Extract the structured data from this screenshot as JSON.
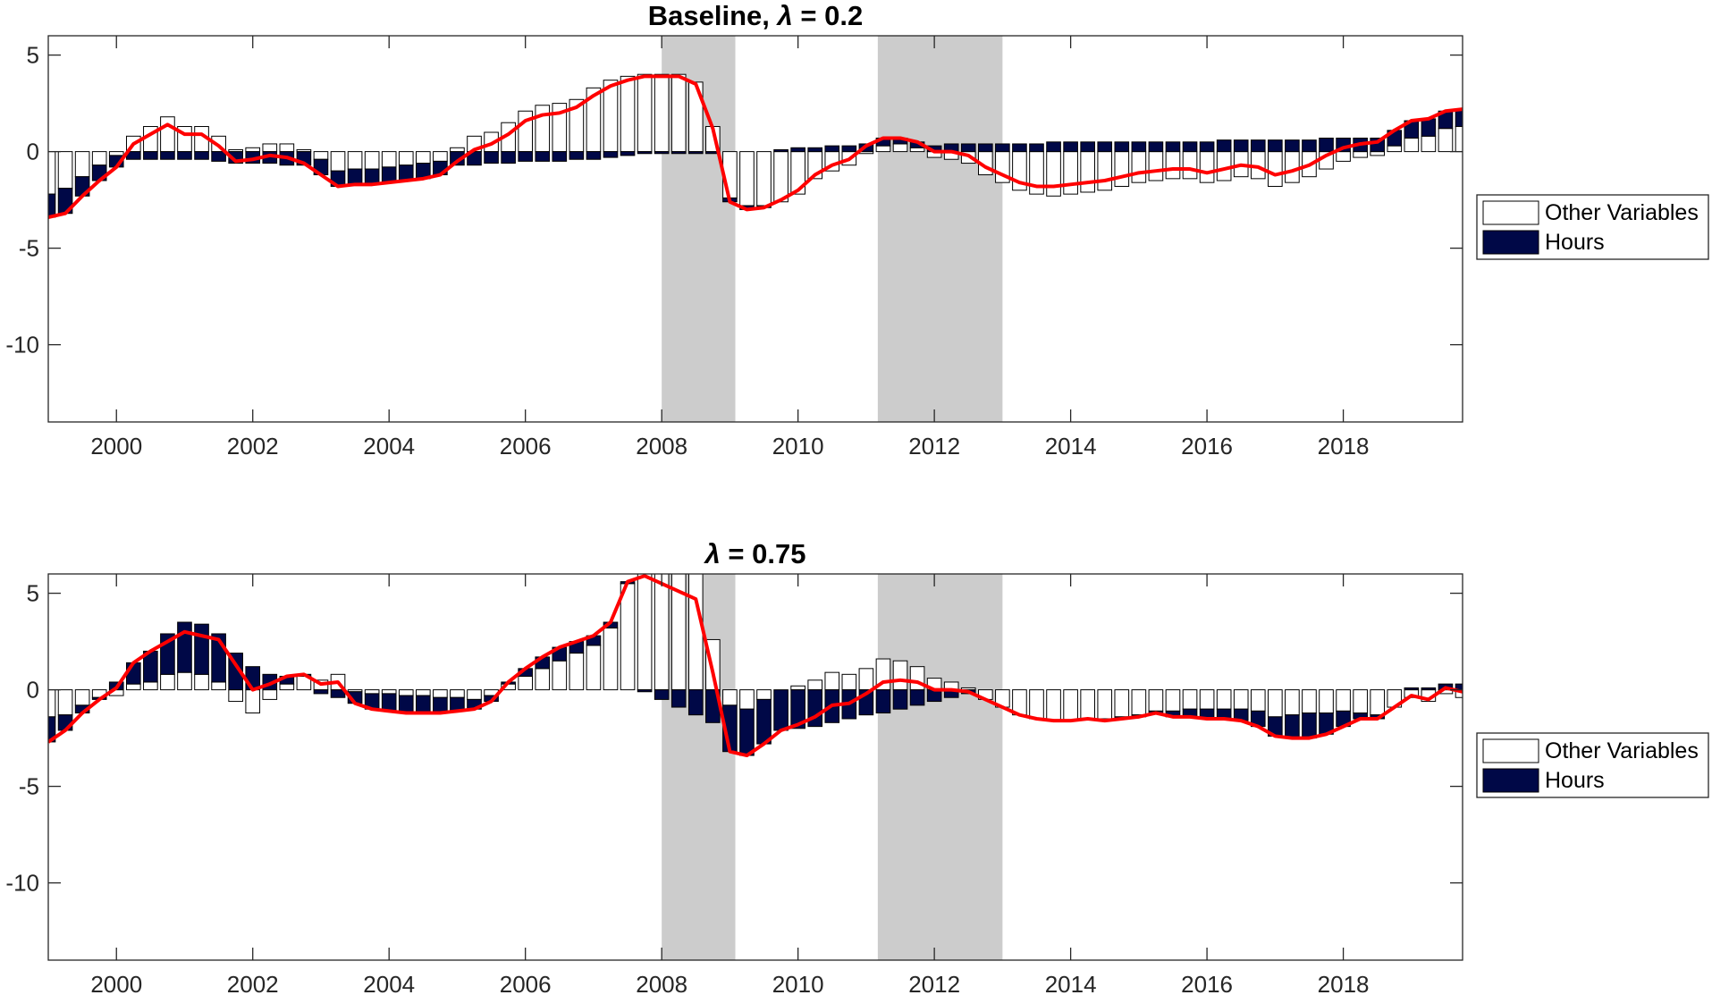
{
  "colors": {
    "other": "#ffffff",
    "hours": "#000847",
    "line": "#ff0000",
    "recession": "#cccccc",
    "axis": "#262626"
  },
  "chart_data": [
    {
      "type": "bar",
      "stacked": true,
      "title_prefix": "Baseline, ",
      "title_symbol": "λ",
      "title_suffix": " = 0.2",
      "xlim": [
        1999.0,
        2019.75
      ],
      "ylim": [
        -14,
        6
      ],
      "yticks": [
        5,
        0,
        -5,
        -10
      ],
      "xticks": [
        2000,
        2002,
        2004,
        2006,
        2008,
        2010,
        2012,
        2014,
        2016,
        2018
      ],
      "shaded_periods": [
        [
          2008.0,
          2009.08
        ],
        [
          2011.17,
          2013.0
        ]
      ],
      "legend": {
        "placement": "right",
        "entries": [
          "Other Variables",
          "Hours"
        ]
      },
      "x_start": 1999.0,
      "x_step": 0.25,
      "series": [
        {
          "name": "Other Variables",
          "values": [
            -2.2,
            -1.9,
            -1.3,
            -0.7,
            -0.2,
            0.8,
            1.3,
            1.8,
            1.3,
            1.3,
            0.8,
            0.1,
            0.2,
            0.4,
            0.4,
            0.1,
            -0.4,
            -1.0,
            -0.9,
            -0.9,
            -0.8,
            -0.7,
            -0.6,
            -0.5,
            0.2,
            0.8,
            1.0,
            1.5,
            2.1,
            2.4,
            2.5,
            2.7,
            3.3,
            3.7,
            3.9,
            4.0,
            4.0,
            4.0,
            3.6,
            1.3,
            -2.4,
            -2.8,
            -2.8,
            -2.6,
            -2.2,
            -1.4,
            -1.0,
            -0.7,
            -0.1,
            0.3,
            0.4,
            0.2,
            -0.3,
            -0.4,
            -0.6,
            -1.2,
            -1.6,
            -2.0,
            -2.2,
            -2.3,
            -2.2,
            -2.1,
            -2.0,
            -1.8,
            -1.6,
            -1.5,
            -1.4,
            -1.4,
            -1.6,
            -1.5,
            -1.3,
            -1.4,
            -1.8,
            -1.6,
            -1.3,
            -0.9,
            -0.5,
            -0.3,
            -0.2,
            0.3,
            0.7,
            0.8,
            1.2,
            1.3,
            1.3,
            1.4,
            1.5,
            1.5,
            1.4,
            1.3
          ]
        },
        {
          "name": "Hours",
          "values": [
            -1.2,
            -1.3,
            -1.0,
            -0.8,
            -0.6,
            -0.4,
            -0.4,
            -0.4,
            -0.4,
            -0.4,
            -0.5,
            -0.6,
            -0.6,
            -0.6,
            -0.7,
            -0.7,
            -0.8,
            -0.8,
            -0.8,
            -0.8,
            -0.8,
            -0.8,
            -0.8,
            -0.7,
            -0.7,
            -0.7,
            -0.6,
            -0.6,
            -0.5,
            -0.5,
            -0.5,
            -0.4,
            -0.4,
            -0.3,
            -0.2,
            -0.1,
            -0.1,
            -0.1,
            -0.1,
            -0.1,
            -0.2,
            -0.2,
            -0.1,
            0.1,
            0.2,
            0.2,
            0.3,
            0.3,
            0.4,
            0.4,
            0.3,
            0.3,
            0.3,
            0.4,
            0.4,
            0.4,
            0.4,
            0.4,
            0.4,
            0.5,
            0.5,
            0.5,
            0.5,
            0.5,
            0.5,
            0.5,
            0.5,
            0.5,
            0.5,
            0.6,
            0.6,
            0.6,
            0.6,
            0.6,
            0.6,
            0.7,
            0.7,
            0.7,
            0.7,
            0.8,
            0.9,
            0.9,
            0.9,
            0.9,
            0.9,
            0.9,
            0.9,
            0.8,
            0.8,
            0.8
          ]
        },
        {
          "name": "Total",
          "values": [
            -3.4,
            -3.2,
            -2.3,
            -1.5,
            -0.8,
            0.4,
            0.9,
            1.4,
            0.9,
            0.9,
            0.3,
            -0.5,
            -0.4,
            -0.2,
            -0.3,
            -0.6,
            -1.2,
            -1.8,
            -1.7,
            -1.7,
            -1.6,
            -1.5,
            -1.4,
            -1.2,
            -0.5,
            0.1,
            0.4,
            0.9,
            1.6,
            1.9,
            2.0,
            2.3,
            2.9,
            3.4,
            3.7,
            3.9,
            3.9,
            3.9,
            3.5,
            1.2,
            -2.6,
            -3.0,
            -2.9,
            -2.5,
            -2.0,
            -1.2,
            -0.7,
            -0.4,
            0.3,
            0.7,
            0.7,
            0.5,
            0.0,
            0.0,
            -0.2,
            -0.8,
            -1.2,
            -1.6,
            -1.8,
            -1.8,
            -1.7,
            -1.6,
            -1.5,
            -1.3,
            -1.1,
            -1.0,
            -0.9,
            -0.9,
            -1.1,
            -0.9,
            -0.7,
            -0.8,
            -1.2,
            -1.0,
            -0.7,
            -0.2,
            0.2,
            0.4,
            0.5,
            1.1,
            1.6,
            1.7,
            2.1,
            2.2,
            2.2,
            2.3,
            2.4,
            2.3,
            2.2,
            2.1
          ]
        }
      ]
    },
    {
      "type": "bar",
      "stacked": true,
      "title_prefix": "",
      "title_symbol": "λ",
      "title_suffix": " = 0.75",
      "xlim": [
        1999.0,
        2019.75
      ],
      "ylim": [
        -14,
        6
      ],
      "yticks": [
        5,
        0,
        -5,
        -10
      ],
      "xticks": [
        2000,
        2002,
        2004,
        2006,
        2008,
        2010,
        2012,
        2014,
        2016,
        2018
      ],
      "shaded_periods": [
        [
          2008.0,
          2009.08
        ],
        [
          2011.17,
          2013.0
        ]
      ],
      "legend": {
        "placement": "right",
        "entries": [
          "Other Variables",
          "Hours"
        ]
      },
      "x_start": 1999.0,
      "x_step": 0.25,
      "series": [
        {
          "name": "Other Variables",
          "values": [
            -1.4,
            -1.3,
            -0.8,
            -0.4,
            -0.3,
            0.3,
            0.4,
            0.8,
            0.9,
            0.8,
            0.4,
            -0.6,
            -1.2,
            -0.5,
            0.3,
            0.7,
            0.5,
            0.8,
            -0.1,
            -0.2,
            -0.2,
            -0.3,
            -0.3,
            -0.4,
            -0.4,
            -0.5,
            -0.3,
            0.3,
            0.7,
            1.1,
            1.5,
            1.9,
            2.3,
            3.2,
            5.5,
            6.0,
            6.0,
            6.0,
            6.0,
            2.6,
            -0.8,
            -1.0,
            -0.5,
            0.0,
            0.2,
            0.5,
            0.9,
            0.8,
            1.1,
            1.6,
            1.5,
            1.2,
            0.6,
            0.4,
            0.1,
            -0.5,
            -0.9,
            -1.3,
            -1.5,
            -1.6,
            -1.6,
            -1.5,
            -1.5,
            -1.4,
            -1.3,
            -1.1,
            -1.1,
            -1.0,
            -1.0,
            -1.0,
            -1.0,
            -1.1,
            -1.4,
            -1.3,
            -1.2,
            -1.2,
            -1.1,
            -1.2,
            -1.3,
            -0.9,
            -0.4,
            -0.6,
            -0.2,
            -0.4,
            -0.5,
            -0.6,
            -0.6,
            -0.8,
            -0.6,
            -0.9
          ]
        },
        {
          "name": "Hours",
          "values": [
            -1.3,
            -0.8,
            -0.4,
            -0.1,
            0.4,
            1.1,
            1.6,
            2.1,
            2.6,
            2.6,
            2.5,
            1.9,
            1.2,
            0.8,
            0.4,
            0.1,
            -0.2,
            -0.4,
            -0.6,
            -0.8,
            -0.9,
            -0.9,
            -0.9,
            -0.8,
            -0.7,
            -0.5,
            -0.3,
            0.1,
            0.4,
            0.6,
            0.7,
            0.6,
            0.5,
            0.3,
            0.1,
            -0.1,
            -0.5,
            -0.9,
            -1.3,
            -1.7,
            -2.4,
            -2.4,
            -2.3,
            -2.1,
            -2.0,
            -1.9,
            -1.7,
            -1.5,
            -1.3,
            -1.2,
            -1.0,
            -0.8,
            -0.6,
            -0.4,
            -0.2,
            0.0,
            0.0,
            0.0,
            0.0,
            0.0,
            0.0,
            0.0,
            -0.1,
            -0.1,
            -0.1,
            -0.1,
            -0.3,
            -0.4,
            -0.5,
            -0.5,
            -0.6,
            -0.8,
            -1.0,
            -1.2,
            -1.3,
            -1.1,
            -0.8,
            -0.3,
            -0.2,
            0.0,
            0.1,
            0.1,
            0.3,
            0.3,
            0.4,
            0.5,
            0.5,
            0.6,
            0.6,
            0.5
          ]
        },
        {
          "name": "Total",
          "values": [
            -2.7,
            -2.1,
            -1.2,
            -0.5,
            0.1,
            1.4,
            2.0,
            2.5,
            3.0,
            2.8,
            2.6,
            1.3,
            0.0,
            0.3,
            0.7,
            0.8,
            0.3,
            0.4,
            -0.7,
            -1.0,
            -1.1,
            -1.2,
            -1.2,
            -1.2,
            -1.1,
            -1.0,
            -0.6,
            0.4,
            1.1,
            1.7,
            2.2,
            2.5,
            2.8,
            3.5,
            5.6,
            5.9,
            5.5,
            5.1,
            4.7,
            0.9,
            -3.2,
            -3.4,
            -2.8,
            -2.1,
            -1.8,
            -1.4,
            -0.8,
            -0.7,
            -0.2,
            0.4,
            0.5,
            0.4,
            0.0,
            0.0,
            -0.1,
            -0.5,
            -0.9,
            -1.3,
            -1.5,
            -1.6,
            -1.6,
            -1.5,
            -1.6,
            -1.5,
            -1.4,
            -1.2,
            -1.4,
            -1.4,
            -1.5,
            -1.5,
            -1.6,
            -1.9,
            -2.4,
            -2.5,
            -2.5,
            -2.3,
            -1.9,
            -1.5,
            -1.5,
            -0.9,
            -0.3,
            -0.5,
            0.1,
            -0.1,
            -0.1,
            -0.1,
            -0.1,
            -0.2,
            0.0,
            -0.4
          ]
        }
      ]
    }
  ]
}
